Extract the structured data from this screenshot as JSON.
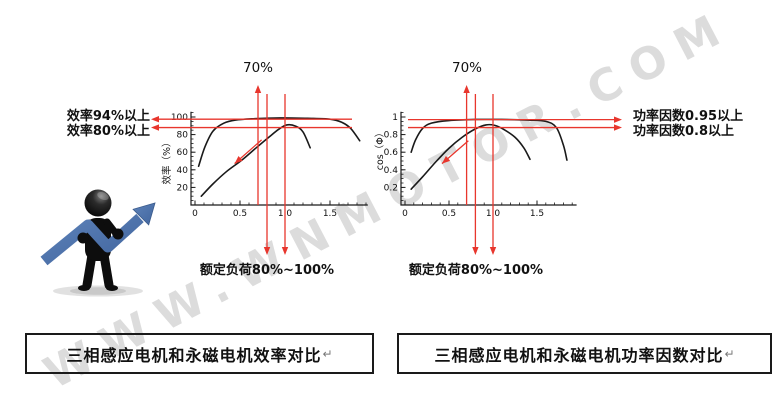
{
  "watermark": "WWW.WNMOTOR.COM",
  "colors": {
    "annotation_red": "#e8362d",
    "curve_black": "#1a1a1a",
    "arrow_blue": "#4e73ac",
    "watermark_gray": "#b9b9b9"
  },
  "left_panel": {
    "top_label": "70%",
    "threshold_labels": [
      "效率94%以上",
      "效率80%以上"
    ],
    "bottom_label": "额定负荷80%~100%",
    "caption": "三相感应电机和永磁电机效率对比",
    "caption_return_mark": "↵"
  },
  "right_panel": {
    "top_label": "70%",
    "threshold_labels": [
      "功率因数0.95以上",
      "功率因数0.8以上"
    ],
    "bottom_label": "额定负荷80%~100%",
    "caption": "三相感应电机和永磁电机功率因数对比",
    "caption_return_mark": "↵"
  },
  "chart_data": [
    {
      "type": "line",
      "title": "",
      "xlabel": "",
      "ylabel": "效率（%）",
      "xlim": [
        0,
        1.92
      ],
      "ylim": [
        0,
        106
      ],
      "x_major_ticks": [
        0,
        0.5,
        1.0,
        1.5
      ],
      "x_tick_labels": [
        "0",
        "0.5",
        "1.0",
        "1.5"
      ],
      "x_minor_step": 0.1,
      "y_major_ticks": [
        20,
        40,
        60,
        80,
        100
      ],
      "y_tick_labels": [
        "20",
        "40",
        "60",
        "80",
        "100"
      ],
      "y_minor_step": 5,
      "grid": false,
      "series": [
        {
          "points": [
            [
              0.04,
              44
            ],
            [
              0.11,
              66
            ],
            [
              0.2,
              84
            ],
            [
              0.32,
              93
            ],
            [
              0.45,
              96.5
            ],
            [
              0.65,
              98
            ],
            [
              0.95,
              99
            ],
            [
              1.25,
              98.5
            ],
            [
              1.5,
              97.5
            ],
            [
              1.63,
              94
            ],
            [
              1.73,
              87
            ],
            [
              1.83,
              73
            ]
          ]
        },
        {
          "points": [
            [
              0.07,
              10
            ],
            [
              0.2,
              24
            ],
            [
              0.35,
              38
            ],
            [
              0.52,
              51
            ],
            [
              0.68,
              65
            ],
            [
              0.82,
              77
            ],
            [
              0.93,
              86
            ],
            [
              1.02,
              91
            ],
            [
              1.12,
              89.5
            ],
            [
              1.2,
              83
            ],
            [
              1.28,
              65
            ]
          ]
        }
      ],
      "annotations": {
        "h_line_values": [
          97.5,
          88
        ],
        "h_arrow_side": "left",
        "v_top_arrow_x": 0.7,
        "v_bottom_arrow_xs": [
          0.8,
          1.0
        ],
        "diag_arrow": {
          "from": [
            0.74,
            74
          ],
          "to": [
            0.44,
            47
          ]
        }
      }
    },
    {
      "type": "line",
      "title": "",
      "xlabel": "",
      "ylabel": "cos（Φ）",
      "xlim": [
        0,
        1.95
      ],
      "ylim": [
        0,
        1.06
      ],
      "x_major_ticks": [
        0,
        0.5,
        1.0,
        1.5
      ],
      "x_tick_labels": [
        "0",
        "0.5",
        "1.0",
        "1.5"
      ],
      "x_minor_step": 0.1,
      "y_major_ticks": [
        0.2,
        0.4,
        0.6,
        0.8,
        1
      ],
      "y_tick_labels": [
        "0.2",
        "0.4",
        "0.6",
        "0.8",
        "1"
      ],
      "y_minor_step": 0.05,
      "grid": false,
      "series": [
        {
          "points": [
            [
              0.07,
              0.6
            ],
            [
              0.12,
              0.74
            ],
            [
              0.2,
              0.87
            ],
            [
              0.3,
              0.93
            ],
            [
              0.5,
              0.96
            ],
            [
              0.8,
              0.972
            ],
            [
              1.1,
              0.972
            ],
            [
              1.4,
              0.965
            ],
            [
              1.6,
              0.95
            ],
            [
              1.72,
              0.88
            ],
            [
              1.8,
              0.68
            ],
            [
              1.84,
              0.51
            ]
          ]
        },
        {
          "points": [
            [
              0.07,
              0.18
            ],
            [
              0.2,
              0.32
            ],
            [
              0.35,
              0.49
            ],
            [
              0.5,
              0.645
            ],
            [
              0.65,
              0.77
            ],
            [
              0.8,
              0.865
            ],
            [
              0.92,
              0.91
            ],
            [
              1.02,
              0.905
            ],
            [
              1.12,
              0.86
            ],
            [
              1.25,
              0.77
            ],
            [
              1.35,
              0.65
            ],
            [
              1.42,
              0.52
            ]
          ]
        }
      ],
      "annotations": {
        "h_line_values": [
          0.97,
          0.88
        ],
        "h_arrow_side": "right",
        "v_top_arrow_x": 0.7,
        "v_bottom_arrow_xs": [
          0.8,
          1.0
        ],
        "diag_arrow": {
          "from": [
            0.72,
            0.73
          ],
          "to": [
            0.42,
            0.47
          ]
        }
      }
    }
  ]
}
